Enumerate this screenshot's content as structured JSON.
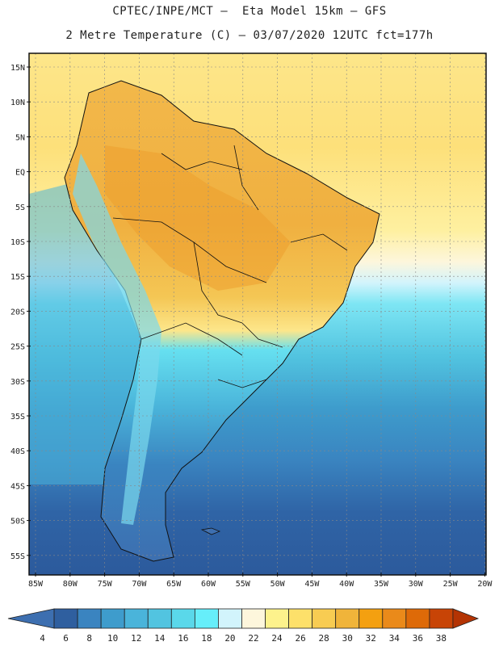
{
  "header": {
    "line1": "CPTEC/INPE/MCT –  Eta Model 15km – GFS",
    "line2": "2 Metre Temperature (C) – 03/07/2020 12UTC fct=177h"
  },
  "map": {
    "lat_labels": [
      "15N",
      "10N",
      "5N",
      "EQ",
      "5S",
      "10S",
      "15S",
      "20S",
      "25S",
      "30S",
      "35S",
      "40S",
      "45S",
      "50S",
      "55S"
    ],
    "lon_labels": [
      "85W",
      "80W",
      "75W",
      "70W",
      "65W",
      "60W",
      "55W",
      "50W",
      "45W",
      "40W",
      "35W",
      "30W",
      "25W",
      "20W"
    ]
  },
  "colorbar": {
    "labels": [
      "4",
      "6",
      "8",
      "10",
      "12",
      "14",
      "16",
      "18",
      "20",
      "22",
      "24",
      "26",
      "28",
      "30",
      "32",
      "34",
      "36",
      "38"
    ],
    "colors": [
      "#3d6fb0",
      "#2f5f9f",
      "#3a84c0",
      "#3e9ccc",
      "#4ab4da",
      "#52c4e0",
      "#5ad8ea",
      "#66eefa",
      "#d2f4fc",
      "#fdf6dc",
      "#fdf28c",
      "#fde06a",
      "#f8cc52",
      "#f0b43a",
      "#f4a010",
      "#ea8a1a",
      "#de6a08",
      "#c84406",
      "#b43404"
    ]
  }
}
